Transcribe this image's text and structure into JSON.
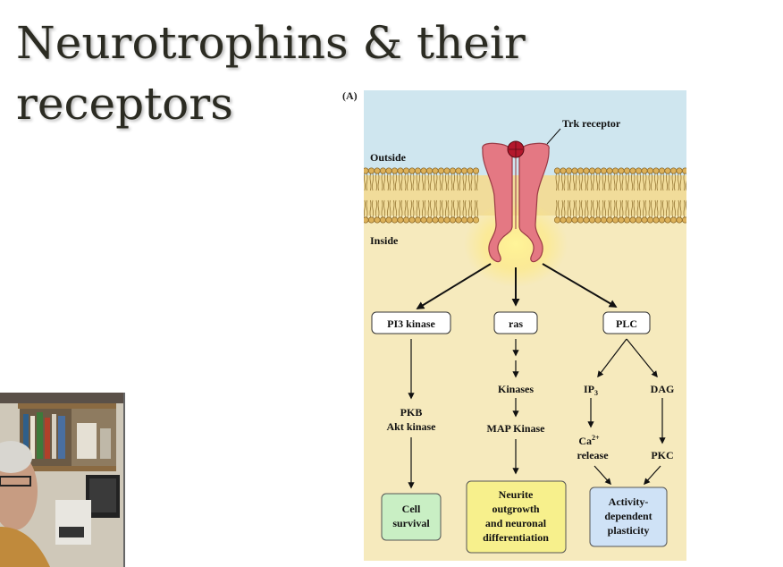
{
  "slide": {
    "title_line1": "Neurotrophins & their",
    "title_line2": "receptors"
  },
  "figure": {
    "panel_label": "(A)",
    "receptor_label": "Trk receptor",
    "outside_label": "Outside",
    "inside_label": "Inside",
    "pathways": {
      "pi3": {
        "header": "PI3 kinase",
        "steps": [
          "PKB",
          "Akt kinase"
        ],
        "outcome": [
          "Cell",
          "survival"
        ],
        "outcome_color": "#c9efc4"
      },
      "ras": {
        "header": "ras",
        "steps": [
          "Kinases",
          "MAP Kinase"
        ],
        "outcome": [
          "Neurite",
          "outgrowth",
          "and neuronal",
          "differentiation"
        ],
        "outcome_color": "#f7f08c"
      },
      "plc": {
        "header": "PLC",
        "ip3": "IP",
        "ip3_subscript": "3",
        "dag": "DAG",
        "ca": "Ca",
        "ca_superscript": "2+",
        "release": "release",
        "pkc": "PKC",
        "outcome": [
          "Activity-",
          "dependent",
          "plasticity"
        ],
        "outcome_color": "#cfe2f6"
      }
    },
    "colors": {
      "outside_bg": "#cfe6ef",
      "inside_bg": "#f6eabd",
      "receptor_fill": "#e47883",
      "receptor_stroke": "#9a3a45",
      "ligand_fill": "#b3172c",
      "membrane_head": "#dcb15a",
      "membrane_head_stroke": "#7a5412"
    }
  }
}
